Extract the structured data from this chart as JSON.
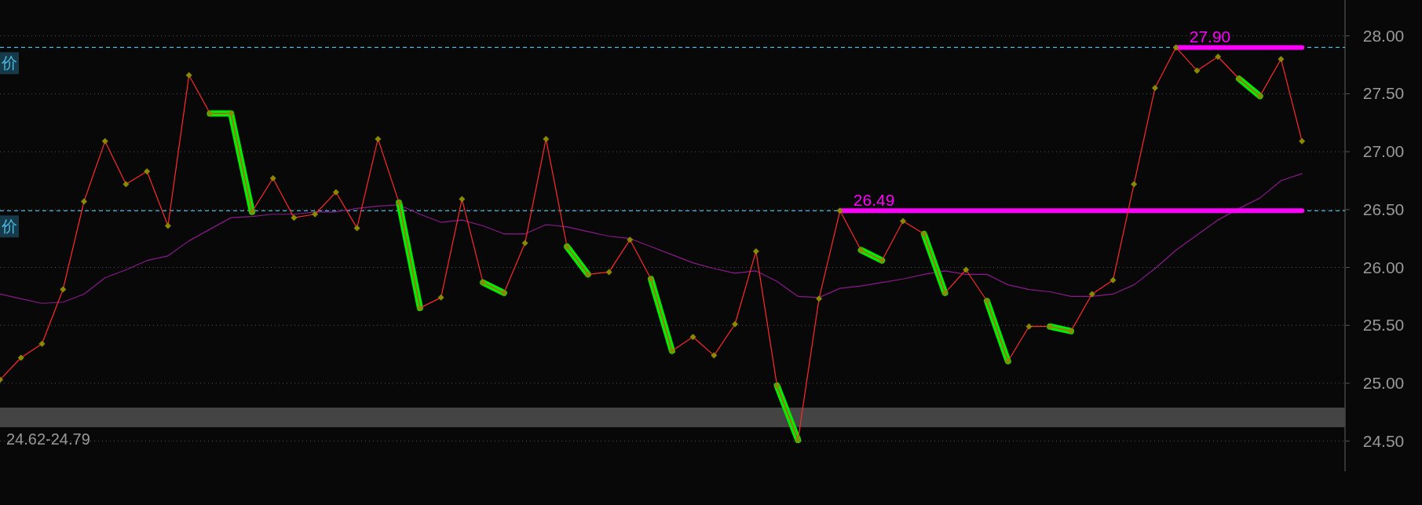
{
  "chart_data": {
    "type": "line",
    "categories": [
      null,
      null,
      null,
      null,
      null,
      null,
      null,
      null,
      null,
      null,
      null,
      null,
      null,
      null,
      null,
      null,
      null,
      null,
      null,
      null,
      null,
      null,
      null,
      null,
      null,
      null,
      null,
      null,
      null,
      null,
      null,
      null,
      null,
      null,
      null,
      null,
      null,
      null,
      null,
      null,
      null,
      null,
      null,
      null,
      null,
      null,
      null,
      null,
      null,
      null,
      null,
      null,
      null,
      null,
      null,
      null,
      null,
      null,
      null,
      null,
      null,
      null,
      null
    ],
    "series": [
      {
        "color": "#8b1a8b",
        "marker": "none",
        "values": [
          25.77,
          25.73,
          25.69,
          25.7,
          25.77,
          25.91,
          25.98,
          26.06,
          26.1,
          26.23,
          26.33,
          26.43,
          26.44,
          26.46,
          26.46,
          26.48,
          26.48,
          26.51,
          26.53,
          26.54,
          26.46,
          26.39,
          26.41,
          26.36,
          26.29,
          26.29,
          26.37,
          26.35,
          26.31,
          26.27,
          26.25,
          26.18,
          26.11,
          26.04,
          25.99,
          25.95,
          25.97,
          25.88,
          25.75,
          25.74,
          25.82,
          25.84,
          25.87,
          25.9,
          25.94,
          25.97,
          25.94,
          25.94,
          25.85,
          25.81,
          25.79,
          25.75,
          25.75,
          25.77,
          25.85,
          25.99,
          26.15,
          26.28,
          26.41,
          26.51,
          26.6,
          26.75,
          26.81
        ]
      },
      {
        "name": "27.90",
        "color": "#ff00ff",
        "marker": "none",
        "values": [
          null,
          null,
          null,
          null,
          null,
          null,
          null,
          null,
          null,
          null,
          null,
          null,
          null,
          null,
          null,
          null,
          null,
          null,
          null,
          null,
          null,
          null,
          null,
          null,
          null,
          null,
          null,
          null,
          null,
          null,
          null,
          null,
          null,
          null,
          null,
          null,
          null,
          null,
          null,
          null,
          null,
          null,
          null,
          null,
          null,
          null,
          null,
          null,
          null,
          null,
          null,
          null,
          null,
          null,
          null,
          null,
          27.9,
          27.9,
          27.9,
          27.9,
          27.9,
          27.9,
          27.9
        ]
      },
      {
        "name": "26.49",
        "color": "#ff00ff",
        "marker": "none",
        "values": [
          null,
          null,
          null,
          null,
          null,
          null,
          null,
          null,
          null,
          null,
          null,
          null,
          null,
          null,
          null,
          null,
          null,
          null,
          null,
          null,
          null,
          null,
          null,
          null,
          null,
          null,
          null,
          null,
          null,
          null,
          null,
          null,
          null,
          null,
          null,
          null,
          null,
          null,
          null,
          null,
          26.49,
          26.49,
          26.49,
          26.49,
          26.49,
          26.49,
          26.49,
          26.49,
          26.49,
          26.49,
          26.49,
          26.49,
          26.49,
          26.49,
          26.49,
          26.49,
          26.49,
          26.49,
          26.49,
          26.49,
          26.49,
          26.49,
          26.49
        ]
      },
      {
        "color": "#00ee00",
        "marker": "none",
        "values": [
          null,
          null,
          null,
          null,
          null,
          null,
          null,
          null,
          null,
          null,
          27.33,
          27.33,
          26.48,
          null,
          null,
          null,
          null,
          null,
          null,
          26.56,
          25.65,
          null,
          null,
          25.87,
          25.78,
          null,
          null,
          26.18,
          25.94,
          null,
          null,
          25.9,
          25.28,
          null,
          null,
          null,
          null,
          24.98,
          24.51,
          null,
          null,
          26.15,
          26.06,
          null,
          26.29,
          25.78,
          null,
          25.71,
          25.19,
          null,
          25.49,
          25.45,
          null,
          null,
          null,
          null,
          null,
          null,
          null,
          27.63,
          27.48,
          null,
          null
        ]
      },
      {
        "color": "#ff2a2a",
        "marker": "diamond",
        "values": [
          25.03,
          25.22,
          25.34,
          25.81,
          26.57,
          27.09,
          26.72,
          26.83,
          26.36,
          27.66,
          27.33,
          27.33,
          26.48,
          26.77,
          26.43,
          26.46,
          26.65,
          26.34,
          27.11,
          26.56,
          25.65,
          25.74,
          26.59,
          25.87,
          25.78,
          26.21,
          27.11,
          26.18,
          25.94,
          25.96,
          26.24,
          25.9,
          25.28,
          25.4,
          25.24,
          25.51,
          26.14,
          24.98,
          24.51,
          25.73,
          26.49,
          26.15,
          26.06,
          26.4,
          26.29,
          25.78,
          25.98,
          25.71,
          25.19,
          25.49,
          25.49,
          25.45,
          25.77,
          25.89,
          26.72,
          27.55,
          27.9,
          27.7,
          27.82,
          27.63,
          27.48,
          27.8,
          27.09
        ]
      }
    ],
    "ylim": [
      24.24,
      28.31
    ],
    "yticks": [
      {
        "value": 24.5,
        "label": "24.50"
      },
      {
        "value": 25,
        "label": "25.00"
      },
      {
        "value": 25.5,
        "label": "25.50"
      },
      {
        "value": 26,
        "label": "26.00"
      },
      {
        "value": 26.5,
        "label": "26.50"
      },
      {
        "value": 27,
        "label": "27.00"
      },
      {
        "value": 27.5,
        "label": "27.50"
      },
      {
        "value": 28,
        "label": "28.00"
      }
    ],
    "grid": "y",
    "ref_lines": [
      {
        "axis": "y",
        "value": 27.9,
        "label": "价",
        "color": "#4ab8e0",
        "line_style": "dashed"
      },
      {
        "axis": "y",
        "value": 26.49,
        "label": "价",
        "color": "#4ab8e0",
        "line_style": "dashed"
      }
    ],
    "bands": [
      {
        "axis": "y",
        "from": 24.62,
        "to": 24.79,
        "label": "24.62-24.79",
        "color": "#444444"
      }
    ]
  }
}
